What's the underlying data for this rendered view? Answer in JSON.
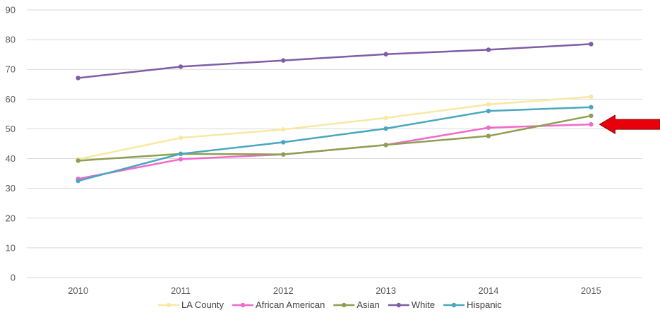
{
  "chart_data": {
    "type": "line",
    "x": [
      "2010",
      "2011",
      "2012",
      "2013",
      "2014",
      "2015"
    ],
    "ylim": [
      0,
      90
    ],
    "yticks": [
      0,
      10,
      20,
      30,
      40,
      50,
      60,
      70,
      80,
      90
    ],
    "grid": true,
    "legend_position": "bottom",
    "series": [
      {
        "name": "LA County",
        "color": "#F8E8A2",
        "values": [
          39.8,
          47.0,
          49.8,
          53.7,
          58.2,
          60.8
        ]
      },
      {
        "name": "African American",
        "color": "#F06ACB",
        "values": [
          33.2,
          39.8,
          41.4,
          44.6,
          50.4,
          51.5
        ]
      },
      {
        "name": "Asian",
        "color": "#8E9F52",
        "values": [
          39.3,
          41.6,
          41.4,
          44.6,
          47.6,
          54.4
        ]
      },
      {
        "name": "White",
        "color": "#7E5DA6",
        "values": [
          67.1,
          70.9,
          73.0,
          75.1,
          76.6,
          78.5
        ]
      },
      {
        "name": "Hispanic",
        "color": "#4AA7BE",
        "values": [
          32.5,
          41.6,
          45.5,
          50.1,
          56.0,
          57.3
        ]
      }
    ],
    "annotation": {
      "shape": "arrow-left",
      "color": "#E8000B",
      "points_to_series": "African American",
      "at_x": "2015"
    }
  }
}
